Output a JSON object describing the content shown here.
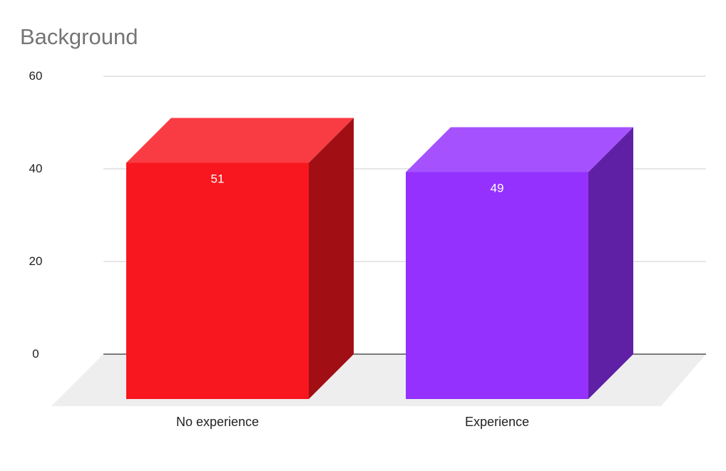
{
  "chart_data": {
    "type": "bar",
    "title": "Background",
    "categories": [
      "No experience",
      "Experience"
    ],
    "values": [
      51,
      49
    ],
    "colors": [
      "#f8171f",
      "#9431fe"
    ],
    "yticks": [
      0,
      20,
      40,
      60
    ],
    "ylim": [
      0,
      60
    ],
    "grid": true,
    "xlabel": "",
    "ylabel": "",
    "style": "3d"
  }
}
